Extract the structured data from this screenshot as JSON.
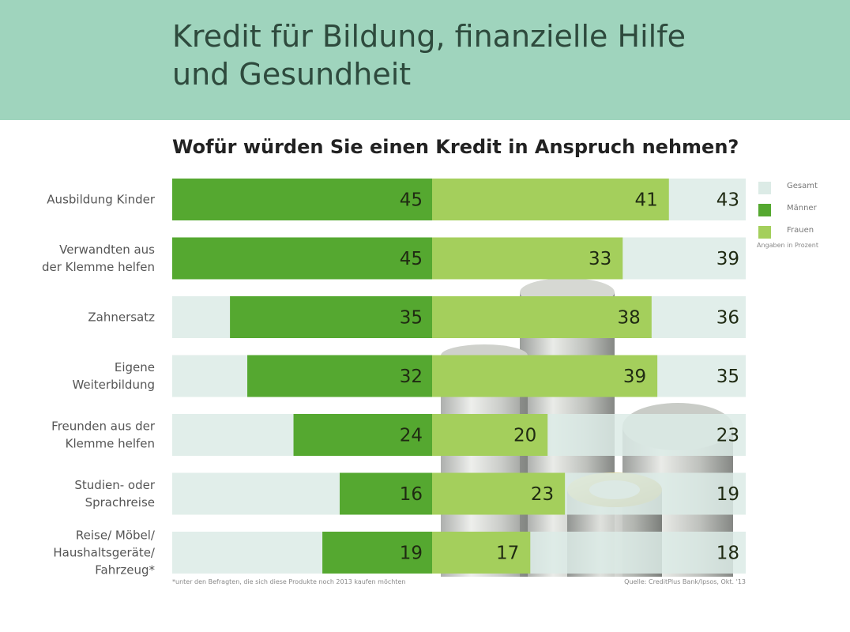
{
  "header": {
    "title_line1": "Kredit für Bildung, finanzielle Hilfe",
    "title_line2": "und Gesundheit"
  },
  "colors": {
    "header_bg": "#9fd4bd",
    "gesamt": "#dcebe6",
    "maenner": "#55a830",
    "frauen": "#a4cf5c"
  },
  "legend": {
    "items": [
      {
        "label": "Gesamt",
        "color": "#dcebe6"
      },
      {
        "label": "Männer",
        "color": "#55a830"
      },
      {
        "label": "Frauen",
        "color": "#a4cf5c"
      }
    ],
    "unit": "Angaben in Prozent"
  },
  "footnote": "*unter den Befragten, die sich diese Produkte noch 2013 kaufen möchten",
  "source": "Quelle: CreditPlus Bank/Ipsos, Okt. '13",
  "chart_data": {
    "type": "bar",
    "title": "Wofür würden Sie einen Kredit in Anspruch nehmen?",
    "categories": [
      [
        "Ausbildung Kinder"
      ],
      [
        "Verwandten aus",
        "der Klemme helfen"
      ],
      [
        "Zahnersatz"
      ],
      [
        "Eigene",
        "Weiterbildung"
      ],
      [
        "Freunden aus der",
        "Klemme helfen"
      ],
      [
        "Studien- oder",
        "Sprachreise"
      ],
      [
        "Reise/ Möbel/",
        "Haushaltsgeräte/",
        "Fahrzeug*"
      ]
    ],
    "series": [
      {
        "name": "Männer",
        "values": [
          45,
          45,
          35,
          32,
          24,
          16,
          19
        ]
      },
      {
        "name": "Frauen",
        "values": [
          41,
          33,
          38,
          39,
          20,
          23,
          17
        ]
      },
      {
        "name": "Gesamt",
        "values": [
          43,
          39,
          36,
          35,
          23,
          19,
          18
        ]
      }
    ],
    "xlim": [
      0,
      50
    ],
    "layout_note": "diverging bars: Männer extend left from center, Frauen extend right; Gesamt value shown at right in a full-width light band"
  }
}
